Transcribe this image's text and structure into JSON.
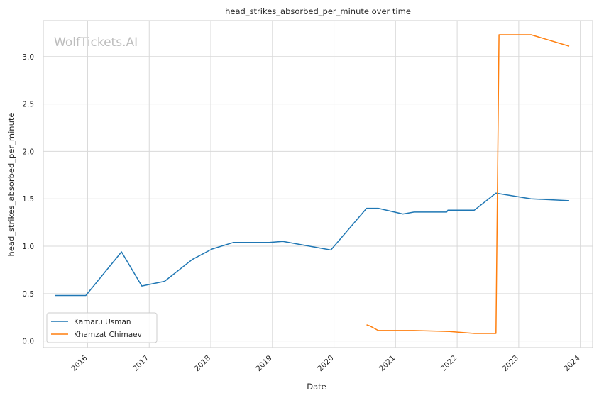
{
  "chart_data": {
    "type": "line",
    "title": "head_strikes_absorbed_per_minute over time",
    "xlabel": "Date",
    "ylabel": "head_strikes_absorbed_per_minute",
    "watermark": "WolfTickets.AI",
    "xlim": [
      2015.28,
      2024.2
    ],
    "ylim": [
      -0.07,
      3.38
    ],
    "x_ticks": [
      2016,
      2017,
      2018,
      2019,
      2020,
      2021,
      2022,
      2023,
      2024
    ],
    "x_tick_labels": [
      "2016",
      "2017",
      "2018",
      "2019",
      "2020",
      "2021",
      "2022",
      "2023",
      "2024"
    ],
    "y_ticks": [
      0.0,
      0.5,
      1.0,
      1.5,
      2.0,
      2.5,
      3.0
    ],
    "y_tick_labels": [
      "0.0",
      "0.5",
      "1.0",
      "1.5",
      "2.0",
      "2.5",
      "3.0"
    ],
    "grid": true,
    "legend_position": "lower-left",
    "series": [
      {
        "name": "Kamaru Usman",
        "color": "#1f77b4",
        "x": [
          2015.47,
          2015.97,
          2016.55,
          2016.88,
          2017.25,
          2017.7,
          2018.02,
          2018.37,
          2018.95,
          2019.17,
          2019.95,
          2020.53,
          2020.72,
          2021.12,
          2021.3,
          2021.83,
          2021.85,
          2022.28,
          2022.63,
          2023.2,
          2023.82
        ],
        "y": [
          0.48,
          0.48,
          0.94,
          0.58,
          0.63,
          0.86,
          0.97,
          1.04,
          1.04,
          1.05,
          0.96,
          1.4,
          1.4,
          1.34,
          1.36,
          1.36,
          1.38,
          1.38,
          1.56,
          1.5,
          1.48
        ]
      },
      {
        "name": "Khamzat Chimaev",
        "color": "#ff7f0e",
        "x": [
          2020.53,
          2020.58,
          2020.72,
          2021.3,
          2021.88,
          2022.28,
          2022.63,
          2022.68,
          2023.2,
          2023.82
        ],
        "y": [
          0.17,
          0.16,
          0.11,
          0.11,
          0.1,
          0.08,
          0.08,
          3.23,
          3.23,
          3.11
        ]
      }
    ]
  }
}
